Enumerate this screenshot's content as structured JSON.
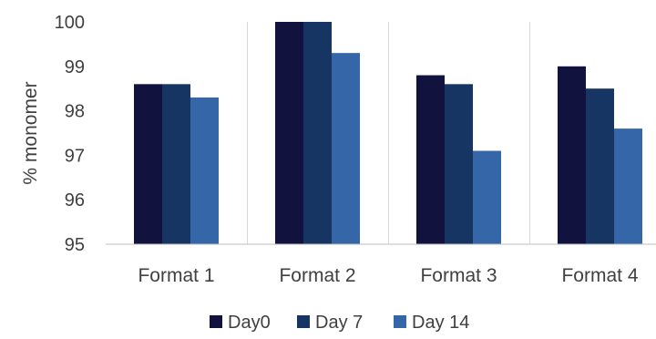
{
  "chart_data": {
    "type": "bar",
    "categories": [
      "Format 1",
      "Format 2",
      "Format 3",
      "Format 4"
    ],
    "series": [
      {
        "name": "Day0",
        "values": [
          98.6,
          100.0,
          98.8,
          99.0
        ],
        "color": "#12123f"
      },
      {
        "name": "Day 7",
        "values": [
          98.6,
          100.0,
          98.6,
          98.5
        ],
        "color": "#163563"
      },
      {
        "name": "Day 14",
        "values": [
          98.3,
          99.3,
          97.1,
          97.6
        ],
        "color": "#3566a8"
      }
    ],
    "ylabel": "% monomer",
    "ylim": [
      95,
      100
    ],
    "yticks": [
      95,
      96,
      97,
      98,
      99,
      100
    ],
    "grid": "vertical-category-separators",
    "legend": "bottom"
  }
}
